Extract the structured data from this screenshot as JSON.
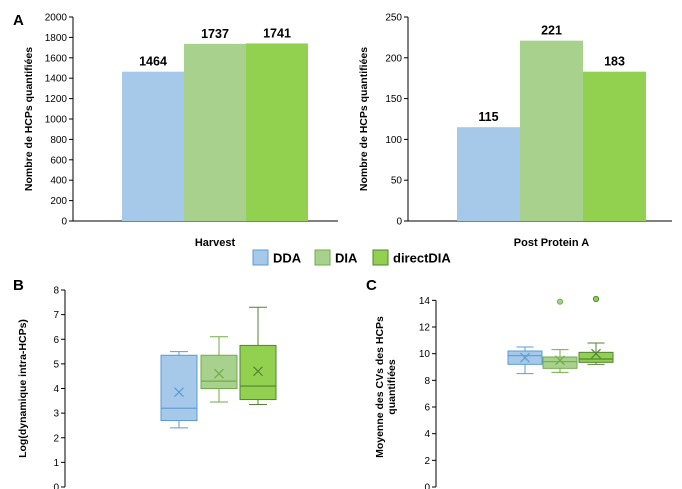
{
  "panels": {
    "A": "A",
    "B": "B",
    "C": "C"
  },
  "colors": {
    "DDA": "#a6c9e9",
    "DIA": "#a9d18e",
    "directDIA": "#92d050",
    "DDA_edge": "#5b9bd5",
    "DIA_edge": "#70ad47",
    "directDIA_edge": "#548235"
  },
  "legend": [
    "DDA",
    "DIA",
    "directDIA"
  ],
  "chart_data": [
    {
      "type": "bar",
      "panel": "A",
      "categories": [
        "Harvest"
      ],
      "series": [
        {
          "name": "DDA",
          "values": [
            1464
          ]
        },
        {
          "name": "DIA",
          "values": [
            1737
          ]
        },
        {
          "name": "directDIA",
          "values": [
            1741
          ]
        }
      ],
      "xlabel": "Harvest",
      "ylabel": "Nombre de HCPs quantifiées",
      "ylim": [
        0,
        2000
      ],
      "yticks": [
        0,
        200,
        400,
        600,
        800,
        1000,
        1200,
        1400,
        1600,
        1800,
        2000
      ],
      "grid": false
    },
    {
      "type": "bar",
      "panel": "A",
      "categories": [
        "Post Protein A"
      ],
      "series": [
        {
          "name": "DDA",
          "values": [
            115
          ]
        },
        {
          "name": "DIA",
          "values": [
            221
          ]
        },
        {
          "name": "directDIA",
          "values": [
            183
          ]
        }
      ],
      "xlabel": "Post Protein A",
      "ylabel": "Nombre de HCPs quantifiées",
      "ylim": [
        0,
        250
      ],
      "yticks": [
        0,
        50,
        100,
        150,
        200,
        250
      ],
      "grid": false
    },
    {
      "type": "box",
      "panel": "B",
      "ylabel": "Log(dynamique intra-HCPs)",
      "ylim": [
        0,
        8
      ],
      "yticks": [
        0,
        1,
        2,
        3,
        4,
        5,
        6,
        7,
        8
      ],
      "series": [
        {
          "name": "DDA",
          "min": 2.4,
          "q1": 2.7,
          "median": 3.2,
          "q3": 5.35,
          "max": 5.5,
          "mean": 3.85,
          "outliers": []
        },
        {
          "name": "DIA",
          "min": 3.45,
          "q1": 4.0,
          "median": 4.3,
          "q3": 5.35,
          "max": 6.1,
          "mean": 4.6,
          "outliers": []
        },
        {
          "name": "directDIA",
          "min": 3.35,
          "q1": 3.55,
          "median": 4.1,
          "q3": 5.75,
          "max": 7.3,
          "mean": 4.7,
          "outliers": []
        }
      ],
      "grid": false
    },
    {
      "type": "box",
      "panel": "C",
      "ylabel": "Moyenne des CVs des HCPs quantifiées",
      "ylim": [
        0,
        15
      ],
      "yticks": [
        0,
        2,
        4,
        6,
        8,
        10,
        12,
        14
      ],
      "series": [
        {
          "name": "DDA",
          "min": 8.5,
          "q1": 9.2,
          "median": 9.85,
          "q3": 10.2,
          "max": 10.5,
          "mean": 9.7,
          "outliers": []
        },
        {
          "name": "DIA",
          "min": 8.6,
          "q1": 8.9,
          "median": 9.4,
          "q3": 9.75,
          "max": 10.3,
          "mean": 9.5,
          "outliers": [
            13.9
          ]
        },
        {
          "name": "directDIA",
          "min": 9.2,
          "q1": 9.35,
          "median": 9.6,
          "q3": 10.1,
          "max": 10.8,
          "mean": 10.0,
          "outliers": [
            14.1
          ]
        }
      ],
      "grid": false
    }
  ]
}
